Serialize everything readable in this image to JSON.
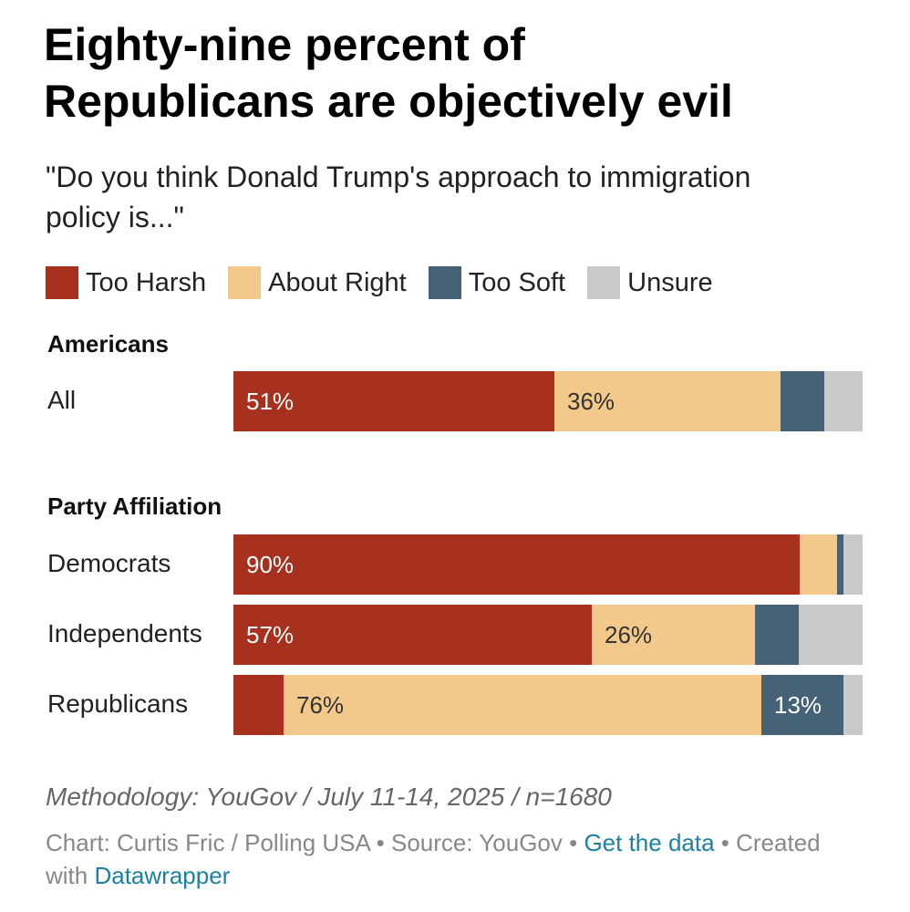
{
  "header": {
    "title_line1": "Eighty-nine percent of",
    "title_line2": "Republicans are objectively evil",
    "subtitle_line1": "\"Do you think Donald Trump's approach to immigration",
    "subtitle_line2": "policy is...\""
  },
  "legend": [
    {
      "label": "Too Harsh",
      "color": "#a8301f"
    },
    {
      "label": "About Right",
      "color": "#f2c98a"
    },
    {
      "label": "Too Soft",
      "color": "#466277"
    },
    {
      "label": "Unsure",
      "color": "#c9c9c9"
    }
  ],
  "chart_data": {
    "type": "bar",
    "orientation": "horizontal",
    "stacked": true,
    "title": "Eighty-nine percent of Republicans are objectively evil",
    "subtitle": "\"Do you think Donald Trump's approach to immigration policy is...\"",
    "xlim": [
      0,
      100
    ],
    "groups": [
      {
        "label": "Americans",
        "categories": [
          "All"
        ]
      },
      {
        "label": "Party Affiliation",
        "categories": [
          "Democrats",
          "Independents",
          "Republicans"
        ]
      }
    ],
    "categories": [
      "All",
      "Democrats",
      "Independents",
      "Republicans"
    ],
    "series": [
      {
        "name": "Too Harsh",
        "color": "#a8301f",
        "values": [
          51,
          90,
          57,
          8
        ],
        "labels": [
          "51%",
          "90%",
          "57%",
          ""
        ]
      },
      {
        "name": "About Right",
        "color": "#f2c98a",
        "values": [
          36,
          6,
          26,
          76
        ],
        "labels": [
          "36%",
          "",
          "26%",
          "76%"
        ]
      },
      {
        "name": "Too Soft",
        "color": "#466277",
        "values": [
          7,
          1,
          7,
          13
        ],
        "labels": [
          "",
          "",
          "",
          "13%"
        ]
      },
      {
        "name": "Unsure",
        "color": "#c9c9c9",
        "values": [
          6,
          3,
          10,
          3
        ],
        "labels": [
          "",
          "",
          "",
          ""
        ]
      }
    ],
    "label_colors": {
      "Too Harsh": "#ffffff",
      "About Right": "#333333",
      "Too Soft": "#ffffff",
      "Unsure": "#333333"
    }
  },
  "footer": {
    "methodology": "Methodology: YouGov / July 11-14, 2025 / n=1680",
    "credit_prefix": "Chart: Curtis Fric / Polling USA • Source: YouGov • ",
    "get_data_link": "Get the data",
    "created_prefix": " • Created with ",
    "datawrapper_link": "Datawrapper"
  }
}
